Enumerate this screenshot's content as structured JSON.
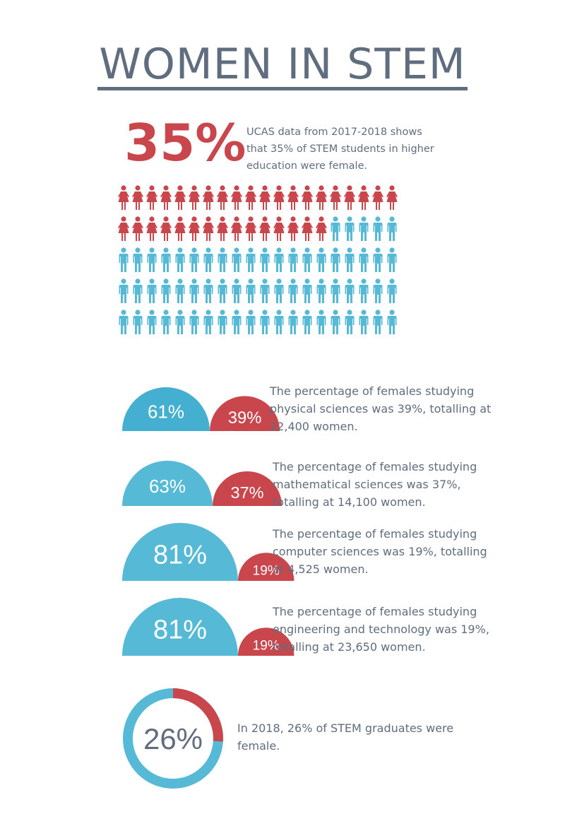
{
  "title": "WOMEN IN STEM",
  "colors": {
    "female": "#c9464c",
    "male": "#56b9d6",
    "male_dark": "#45afd1",
    "title": "#5f6d7e",
    "text": "#5f6d7e"
  },
  "intro": {
    "percent": "35%",
    "text": "UCAS data from  2017-2018 shows that 35% of STEM students in higher education were female."
  },
  "chart_data": [
    {
      "type": "pictograph",
      "total_icons": 100,
      "icons_per_row": 20,
      "series": [
        {
          "name": "female",
          "value": 35
        },
        {
          "name": "male",
          "value": 65
        }
      ]
    },
    {
      "type": "semicircle-comparison",
      "rows": [
        {
          "male_label": "61%",
          "female_label": "39%",
          "male": 61,
          "female": 39,
          "text": "The percentage of females studying physical sciences was 39%, totalling at 22,400 women."
        },
        {
          "male_label": "63%",
          "female_label": "37%",
          "male": 63,
          "female": 37,
          "text": "The percentage of females studying mathematical sciences was 37%, totalling at 14,100 women."
        },
        {
          "male_label": "81%",
          "female_label": "19%",
          "male": 81,
          "female": 19,
          "text": "The percentage of females studying computer sciences was 19%, totalling at 4,525 women."
        },
        {
          "male_label": "81%",
          "female_label": "19%",
          "male": 81,
          "female": 19,
          "text": "The percentage of females studying engineering and technology was 19%, totalling at 23,650 women."
        }
      ]
    },
    {
      "type": "pie",
      "label": "26%",
      "series": [
        {
          "name": "female",
          "value": 26
        },
        {
          "name": "male",
          "value": 74
        }
      ],
      "text": "In 2018, 26% of STEM graduates were female."
    }
  ]
}
